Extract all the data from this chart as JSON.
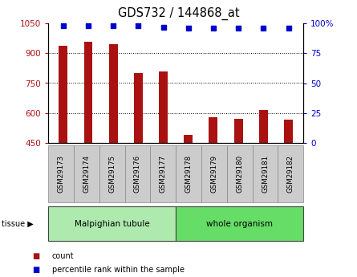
{
  "title": "GDS732 / 144868_at",
  "categories": [
    "GSM29173",
    "GSM29174",
    "GSM29175",
    "GSM29176",
    "GSM29177",
    "GSM29178",
    "GSM29179",
    "GSM29180",
    "GSM29181",
    "GSM29182"
  ],
  "counts": [
    940,
    960,
    945,
    800,
    810,
    490,
    580,
    570,
    615,
    565
  ],
  "percentiles": [
    98,
    98,
    98,
    98,
    97,
    96,
    96,
    96,
    96,
    96
  ],
  "group_labels": [
    "Malpighian tubule",
    "whole organism"
  ],
  "group_colors": [
    "#aeeaae",
    "#66dd66"
  ],
  "group_n": [
    5,
    5
  ],
  "bar_color": "#aa1111",
  "dot_color": "#0000cc",
  "ylim_left": [
    450,
    1050
  ],
  "ylim_right": [
    0,
    100
  ],
  "yticks_left": [
    450,
    600,
    750,
    900,
    1050
  ],
  "yticks_right": [
    0,
    25,
    50,
    75,
    100
  ],
  "tick_label_bg": "#cccccc",
  "legend_count_label": "count",
  "legend_pct_label": "percentile rank within the sample",
  "tissue_label": "tissue"
}
